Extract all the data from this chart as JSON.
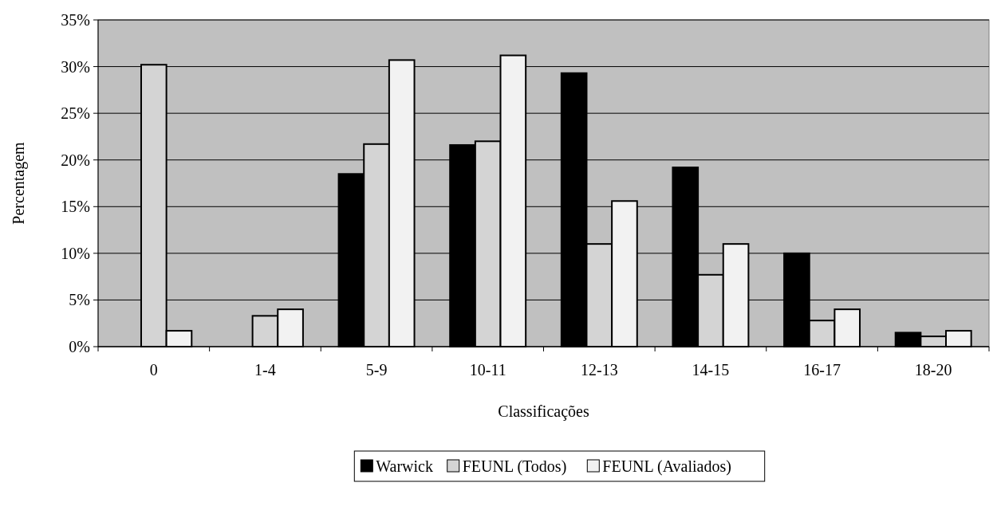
{
  "chart_data": {
    "type": "bar",
    "xlabel": "Classificações",
    "ylabel": "Percentagem",
    "categories": [
      "0",
      "1-4",
      "5-9",
      "10-11",
      "12-13",
      "14-15",
      "16-17",
      "18-20"
    ],
    "series": [
      {
        "name": "Warwick",
        "color": "#000000",
        "values": [
          0,
          0,
          18.5,
          21.6,
          29.3,
          19.2,
          10.0,
          1.5
        ]
      },
      {
        "name": "FEUNL (Todos)",
        "color": "#d4d4d4",
        "values": [
          30.2,
          3.3,
          21.7,
          22.0,
          11.0,
          7.7,
          2.8,
          1.1
        ]
      },
      {
        "name": "FEUNL (Avaliados)",
        "color": "#f2f2f2",
        "values": [
          1.7,
          4.0,
          30.7,
          31.2,
          15.6,
          11.0,
          4.0,
          1.7
        ]
      }
    ],
    "ylim": [
      0,
      35
    ],
    "yticks": [
      {
        "value": 0,
        "label": "0%"
      },
      {
        "value": 5,
        "label": "5%"
      },
      {
        "value": 10,
        "label": "10%"
      },
      {
        "value": 15,
        "label": "15%"
      },
      {
        "value": 20,
        "label": "20%"
      },
      {
        "value": 25,
        "label": "25%"
      },
      {
        "value": 30,
        "label": "30%"
      },
      {
        "value": 35,
        "label": "35%"
      }
    ],
    "grid": "y",
    "legend": "bottom"
  }
}
